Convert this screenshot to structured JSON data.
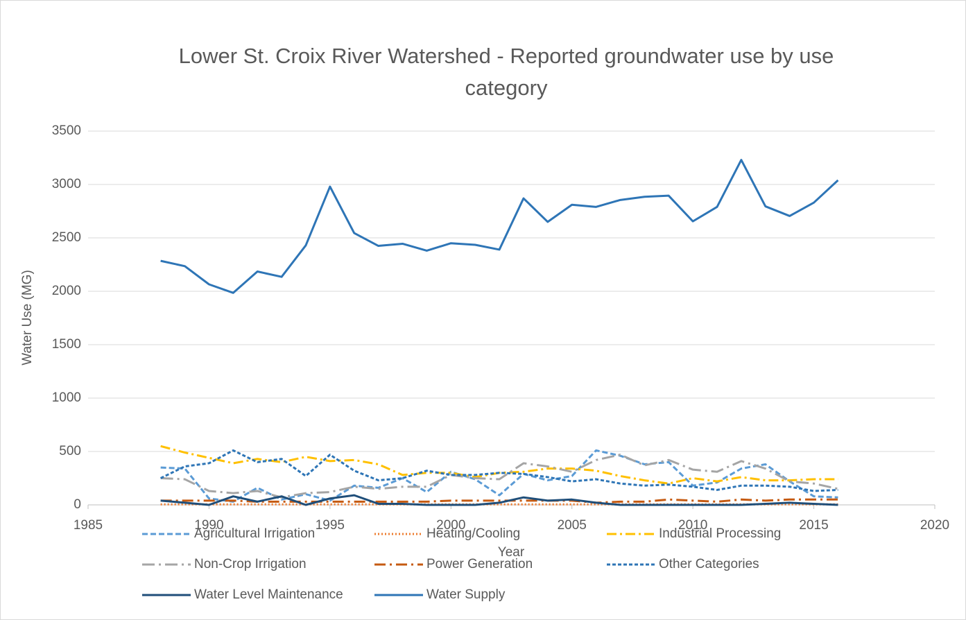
{
  "chart_data": {
    "type": "line",
    "title": "Lower St. Croix River Watershed - Reported groundwater use by use category",
    "x_label": "Year",
    "y_label": "Water Use (MG)",
    "x": [
      1988,
      1989,
      1990,
      1991,
      1992,
      1993,
      1994,
      1995,
      1996,
      1997,
      1998,
      1999,
      2000,
      2001,
      2002,
      2003,
      2004,
      2005,
      2006,
      2007,
      2008,
      2009,
      2010,
      2011,
      2012,
      2013,
      2014,
      2015,
      2016
    ],
    "xlim": [
      1985,
      2020
    ],
    "xticks": [
      1985,
      1990,
      1995,
      2000,
      2005,
      2010,
      2015,
      2020
    ],
    "ylim": [
      0,
      3500
    ],
    "yticks": [
      0,
      500,
      1000,
      1500,
      2000,
      2500,
      3000,
      3500
    ],
    "grid": true,
    "legend": "bottom",
    "series": [
      {
        "name": "Agricultural Irrigation",
        "color": "#5b9bd5",
        "values": [
          350,
          340,
          60,
          30,
          160,
          50,
          100,
          40,
          180,
          160,
          250,
          120,
          310,
          240,
          90,
          290,
          230,
          270,
          510,
          460,
          380,
          400,
          180,
          210,
          340,
          380,
          220,
          80,
          70
        ]
      },
      {
        "name": "Heating/Cooling",
        "color": "#ed7d31",
        "values": [
          5,
          5,
          5,
          5,
          5,
          5,
          5,
          5,
          5,
          5,
          5,
          5,
          5,
          5,
          5,
          5,
          5,
          5,
          5,
          5,
          5,
          5,
          5,
          5,
          5,
          5,
          5,
          5,
          5
        ]
      },
      {
        "name": "Industrial Processing",
        "color": "#ffc000",
        "values": [
          550,
          490,
          440,
          390,
          430,
          400,
          450,
          410,
          420,
          380,
          280,
          300,
          300,
          260,
          300,
          310,
          340,
          340,
          320,
          270,
          230,
          200,
          250,
          220,
          260,
          230,
          230,
          240,
          240
        ]
      },
      {
        "name": "Non-Crop Irrigation",
        "color": "#a5a5a5",
        "values": [
          250,
          240,
          130,
          110,
          130,
          70,
          110,
          120,
          170,
          150,
          170,
          170,
          280,
          250,
          240,
          390,
          360,
          310,
          420,
          470,
          370,
          420,
          330,
          310,
          410,
          340,
          220,
          200,
          150
        ]
      },
      {
        "name": "Power Generation",
        "color": "#c55a11",
        "values": [
          40,
          40,
          40,
          40,
          30,
          30,
          30,
          30,
          30,
          30,
          30,
          30,
          40,
          40,
          40,
          40,
          40,
          40,
          20,
          30,
          30,
          50,
          40,
          30,
          50,
          40,
          50,
          50,
          50
        ]
      },
      {
        "name": "Other Categories",
        "color": "#2e75b6",
        "values": [
          250,
          360,
          390,
          510,
          400,
          430,
          270,
          470,
          320,
          230,
          250,
          320,
          280,
          280,
          300,
          290,
          260,
          220,
          240,
          200,
          180,
          190,
          170,
          140,
          180,
          180,
          170,
          130,
          140
        ]
      },
      {
        "name": "Water Level Maintenance",
        "color": "#1f4e79",
        "values": [
          40,
          20,
          0,
          80,
          30,
          80,
          0,
          60,
          90,
          10,
          10,
          0,
          0,
          0,
          20,
          70,
          40,
          50,
          20,
          0,
          0,
          0,
          0,
          0,
          0,
          10,
          20,
          10,
          0
        ]
      },
      {
        "name": "Water Supply",
        "color": "#2e75b6",
        "values": [
          2285,
          2235,
          2065,
          1985,
          2185,
          2135,
          2430,
          2980,
          2545,
          2425,
          2445,
          2380,
          2450,
          2435,
          2390,
          2870,
          2650,
          2810,
          2790,
          2855,
          2885,
          2895,
          2655,
          2790,
          3230,
          2795,
          2705,
          2830,
          3040
        ]
      }
    ]
  }
}
